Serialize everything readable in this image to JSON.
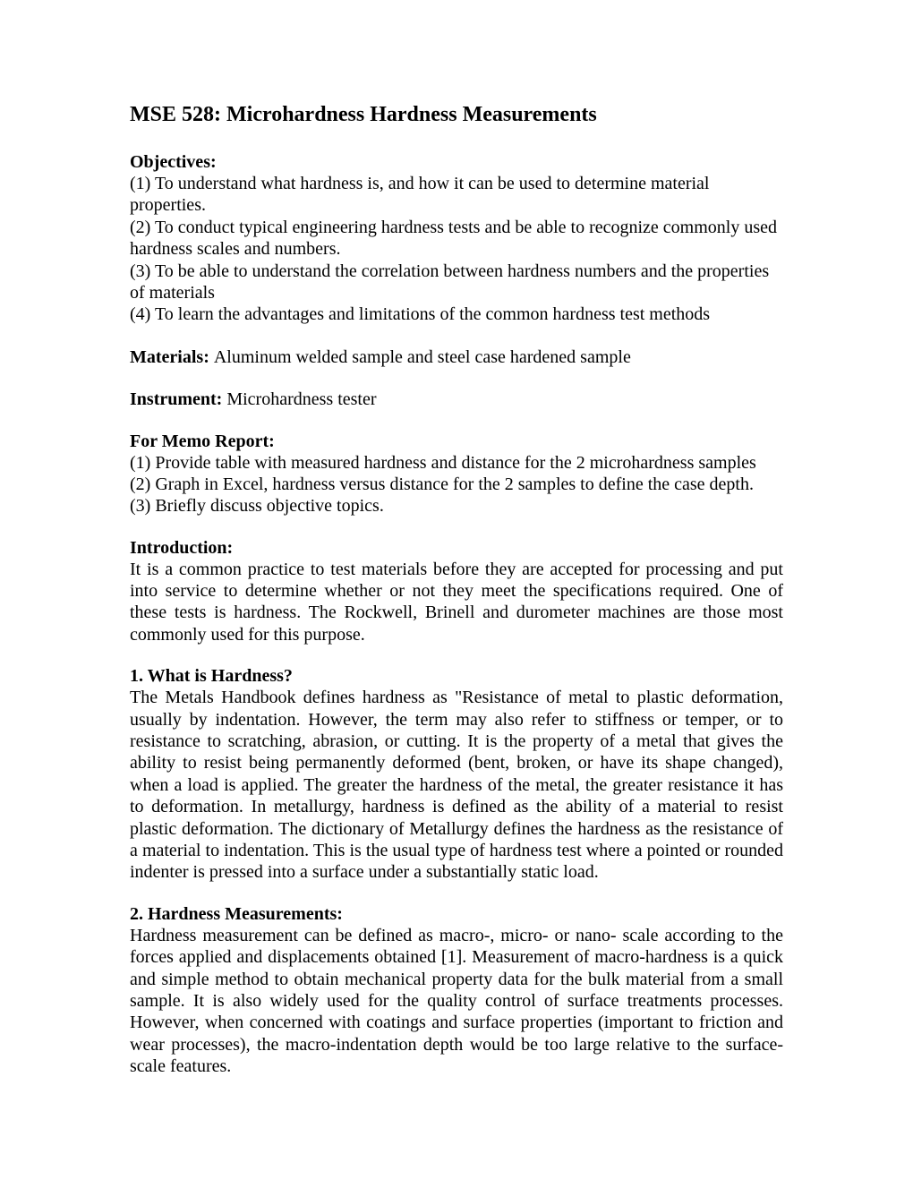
{
  "title": "MSE 528:  Microhardness Hardness Measurements",
  "objectives": {
    "heading": "Objectives:",
    "items": [
      "(1) To understand what hardness is, and how it can be used to determine material properties.",
      "(2) To conduct typical engineering hardness tests and be able to recognize commonly used hardness scales and numbers.",
      "(3) To be able to understand the correlation between hardness numbers and the properties of materials",
      "(4) To learn the advantages and limitations of the common hardness test methods"
    ]
  },
  "materials": {
    "label": "Materials: ",
    "text": "Aluminum welded sample and steel case hardened sample"
  },
  "instrument": {
    "label": "Instrument: ",
    "text": "Microhardness tester"
  },
  "memoReport": {
    "heading": "For Memo Report:",
    "items": [
      "(1) Provide table with measured hardness and distance for the 2 microhardness samples",
      "(2) Graph in Excel, hardness versus distance for the 2 samples to define the case depth.",
      "(3) Briefly discuss objective topics."
    ]
  },
  "introduction": {
    "heading": "Introduction:",
    "text": "It is a common practice to test materials before they are accepted for processing and put into service to determine whether or not they meet the specifications required. One of these tests is hardness. The Rockwell, Brinell and durometer machines are those most commonly used for this purpose."
  },
  "section1": {
    "heading": "1. What is Hardness?",
    "text": "The Metals Handbook defines hardness as \"Resistance of metal to plastic deformation, usually by indentation. However, the term may also refer to stiffness or temper, or to resistance to scratching, abrasion, or cutting. It is the property of a metal that gives the ability to resist being permanently deformed (bent, broken, or have its shape changed), when a load is applied. The greater the hardness of the metal, the greater resistance it has to deformation. In metallurgy, hardness is defined as the ability of a material to resist plastic deformation. The dictionary of Metallurgy defines the hardness as the resistance of a material to indentation. This is the usual type of hardness test where a pointed or rounded indenter is pressed into a surface under a substantially static load."
  },
  "section2": {
    "heading": "2. Hardness Measurements:",
    "text": "Hardness measurement can be defined as macro-, micro- or nano- scale according to the forces applied and displacements obtained [1]. Measurement of macro-hardness is a quick and simple method to obtain mechanical property data for the bulk material from a small sample. It is also widely used for the quality control of surface treatments processes. However, when concerned with coatings and surface properties (important to friction and wear processes), the macro-indentation depth would be too large relative to the surface-scale features."
  }
}
